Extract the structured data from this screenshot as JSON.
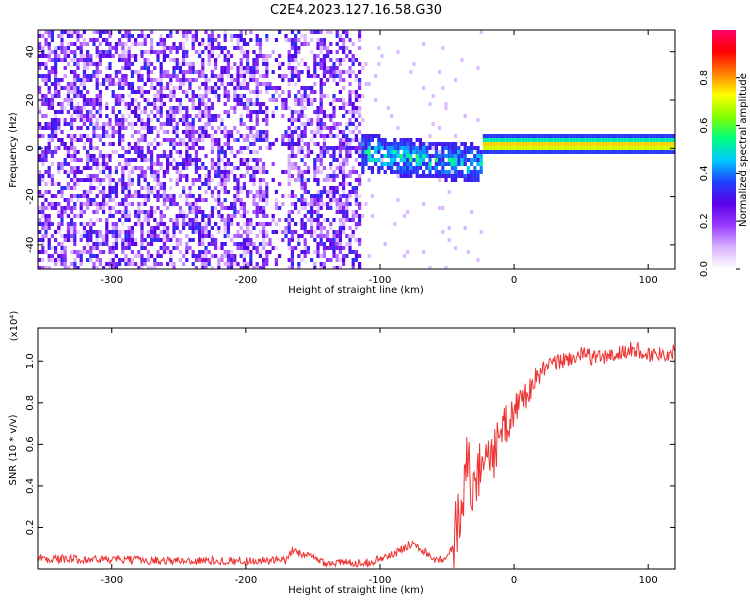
{
  "title": "C2E4.2023.127.16.58.G30",
  "chart_data": [
    {
      "type": "heatmap",
      "title": "C2E4.2023.127.16.58.G30",
      "xlabel": "Height of straight line (km)",
      "ylabel": "Frequency (Hz)",
      "xlim": [
        -355,
        120
      ],
      "ylim": [
        -50,
        49
      ],
      "x_ticks": [
        -300,
        -200,
        -100,
        0,
        100
      ],
      "x_tick_labels": [
        "-300",
        "-200",
        "-100",
        "0",
        "100"
      ],
      "y_ticks": [
        -40,
        -20,
        0,
        20,
        40
      ],
      "y_tick_labels": [
        "-40",
        "-20",
        "0",
        "20",
        "40"
      ],
      "grid": false,
      "colorbar": {
        "label": "Normalized spectral amplitude",
        "range": [
          0,
          1
        ],
        "ticks": [
          0.0,
          0.2,
          0.4,
          0.6,
          0.8
        ],
        "tick_labels": [
          "0.0",
          "0.2",
          "0.4",
          "0.6",
          "0.8"
        ],
        "colormap": [
          "#ffffff",
          "#d9b3ff",
          "#9a3cff",
          "#5a00e6",
          "#1e40ff",
          "#00c8ff",
          "#00ff80",
          "#80ff00",
          "#ffff00",
          "#ff8000",
          "#ff0000",
          "#ff0066"
        ]
      },
      "features": {
        "carrier_line": {
          "x_start": -20,
          "x_end": 120,
          "frequency_hz": 2,
          "amplitude": 0.85
        },
        "noise_region": {
          "x_start": -355,
          "x_end": -115,
          "frequency_range": [
            -50,
            49
          ],
          "amplitude_range": [
            0.05,
            0.35
          ]
        },
        "transition_band": {
          "x_start": -130,
          "x_end": -25,
          "frequency_center": -3,
          "amplitude_range": [
            0.3,
            0.6
          ]
        }
      }
    },
    {
      "type": "line",
      "xlabel": "Height of straight line (km)",
      "ylabel": "SNR (10 * v/v)",
      "yscale_label": "(x10⁴)",
      "xlim": [
        -355,
        120
      ],
      "ylim": [
        0,
        1.16
      ],
      "x_ticks": [
        -300,
        -200,
        -100,
        0,
        100
      ],
      "x_tick_labels": [
        "-300",
        "-200",
        "-100",
        "0",
        "100"
      ],
      "y_ticks": [
        0.2,
        0.4,
        0.6,
        0.8,
        1.0
      ],
      "y_tick_labels": [
        "0.2",
        "0.4",
        "0.6",
        "0.8",
        "1.0"
      ],
      "grid": false,
      "color": "#ee3333",
      "x": [
        -355,
        -300,
        -250,
        -200,
        -170,
        -165,
        -140,
        -110,
        -90,
        -75,
        -60,
        -50,
        -45,
        -40,
        -35,
        -30,
        -25,
        -20,
        -15,
        -10,
        -5,
        0,
        10,
        20,
        30,
        40,
        50,
        60,
        70,
        80,
        90,
        100,
        110,
        120
      ],
      "y": [
        0.05,
        0.045,
        0.04,
        0.04,
        0.04,
        0.09,
        0.03,
        0.03,
        0.07,
        0.13,
        0.05,
        0.05,
        0.12,
        0.32,
        0.5,
        0.38,
        0.5,
        0.6,
        0.55,
        0.66,
        0.7,
        0.77,
        0.85,
        0.95,
        0.99,
        1.01,
        1.03,
        1.02,
        1.02,
        1.04,
        1.06,
        1.03,
        1.04,
        1.04
      ]
    }
  ]
}
